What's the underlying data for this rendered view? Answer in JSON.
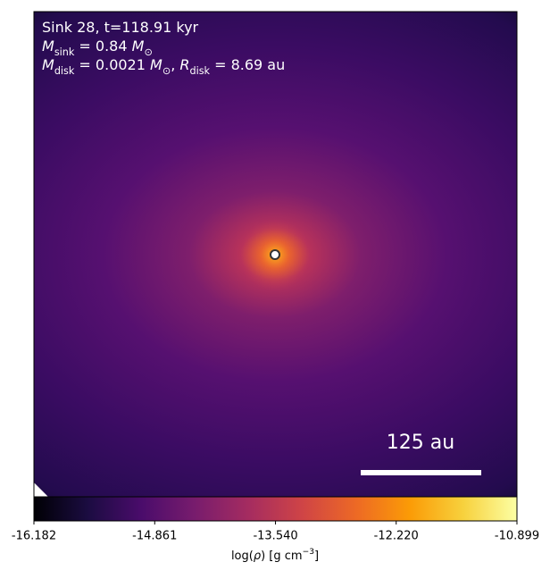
{
  "chart_data": {
    "type": "image",
    "annotation_lines": [
      [
        {
          "text": "Sink 28, t=118.91 kyr",
          "style": "normal"
        }
      ],
      [
        {
          "text": "M",
          "style": "italic"
        },
        {
          "text": "sink",
          "style": "sub"
        },
        {
          "text": " = 0.84 ",
          "style": "normal"
        },
        {
          "text": "M",
          "style": "italic"
        },
        {
          "text": "⊙",
          "style": "sub"
        }
      ],
      [
        {
          "text": "M",
          "style": "italic"
        },
        {
          "text": "disk",
          "style": "sub"
        },
        {
          "text": " = 0.0021 ",
          "style": "normal"
        },
        {
          "text": "M",
          "style": "italic"
        },
        {
          "text": "⊙",
          "style": "sub"
        },
        {
          "text": ", ",
          "style": "normal"
        },
        {
          "text": "R",
          "style": "italic"
        },
        {
          "text": "disk",
          "style": "sub"
        },
        {
          "text": " = 8.69 au",
          "style": "normal"
        }
      ]
    ],
    "scale_bar_label": "125 au",
    "colorbar": {
      "label": [
        {
          "text": "log(",
          "style": "normal"
        },
        {
          "text": "ρ",
          "style": "italic"
        },
        {
          "text": ") [g cm",
          "style": "normal"
        },
        {
          "text": "−3",
          "style": "sup"
        },
        {
          "text": "]",
          "style": "normal"
        }
      ],
      "lim": [
        -16.182,
        -10.899
      ],
      "ticks": [
        -16.182,
        -14.861,
        {
          "value": -13.54,
          "label": "-13.540"
        },
        {
          "value": -12.22,
          "label": "-12.220"
        },
        -10.899
      ],
      "colormap": [
        "#000004",
        "#1b0c41",
        "#4a0c6b",
        "#781c6d",
        "#a52c60",
        "#cf4446",
        "#ed6925",
        "#fb9b06",
        "#f7d13d",
        "#fcffa4"
      ]
    }
  }
}
